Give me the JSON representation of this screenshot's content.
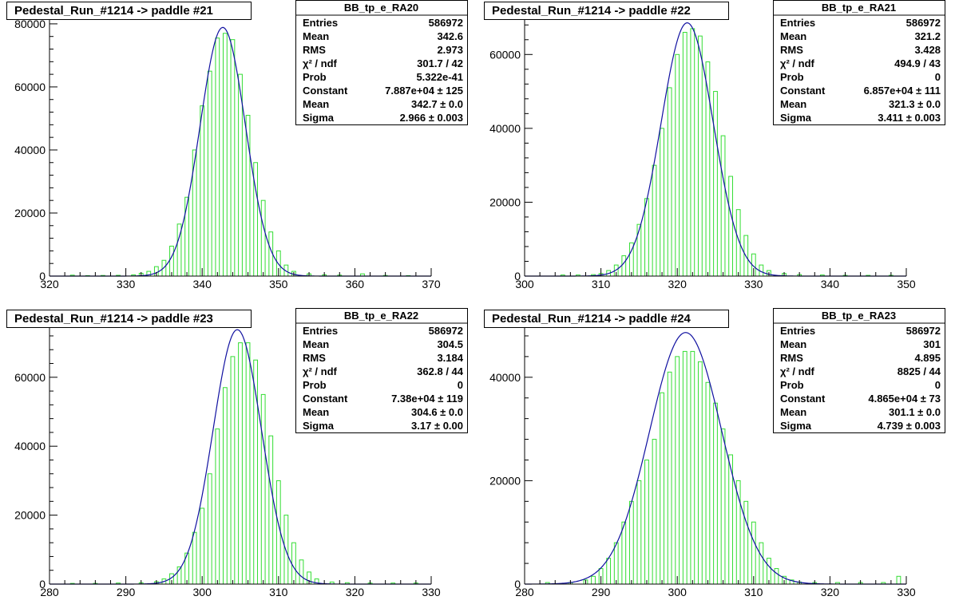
{
  "chart_data": [
    {
      "type": "bar",
      "title": "Pedestal_Run_#1214 -> paddle #21",
      "xlim": [
        320,
        370
      ],
      "ylim": [
        0,
        82000
      ],
      "xticks": [
        320,
        330,
        340,
        350,
        360,
        370
      ],
      "yticks": [
        0,
        20000,
        40000,
        60000,
        80000
      ],
      "x": [
        323,
        325,
        327,
        329,
        331,
        332,
        333,
        334,
        335,
        336,
        337,
        338,
        339,
        340,
        341,
        342,
        343,
        344,
        345,
        346,
        347,
        348,
        349,
        350,
        351,
        352,
        354,
        356,
        358,
        361,
        364,
        367
      ],
      "values": [
        300,
        150,
        200,
        250,
        400,
        900,
        1500,
        3000,
        5000,
        9500,
        16500,
        25000,
        40000,
        54000,
        65000,
        75500,
        77000,
        75000,
        64000,
        51000,
        36000,
        24000,
        14000,
        8000,
        3500,
        1500,
        700,
        400,
        300,
        700,
        200,
        150
      ],
      "fit": {
        "constant": 78870,
        "mean": 342.7,
        "sigma": 2.966
      },
      "stats": {
        "name": "BB_tp_e_RA20",
        "rows": [
          {
            "label": "Entries",
            "value": "586972"
          },
          {
            "label": "Mean",
            "value": "342.6"
          },
          {
            "label": "RMS",
            "value": "2.973"
          },
          {
            "label": "χ² / ndf",
            "value": "301.7 / 42"
          },
          {
            "label": "Prob",
            "value": "5.322e-41"
          },
          {
            "label": "Constant",
            "value": "7.887e+04 ± 125"
          },
          {
            "label": "Mean",
            "value": "342.7 ± 0.0"
          },
          {
            "label": "Sigma",
            "value": "2.966 ± 0.003"
          }
        ]
      }
    },
    {
      "type": "bar",
      "title": "Pedestal_Run_#1214 -> paddle #22",
      "xlim": [
        300,
        350
      ],
      "ylim": [
        0,
        70000
      ],
      "xticks": [
        300,
        310,
        320,
        330,
        340,
        350
      ],
      "yticks": [
        0,
        20000,
        40000,
        60000
      ],
      "x": [
        305,
        307,
        309,
        310,
        311,
        312,
        313,
        314,
        315,
        316,
        317,
        318,
        319,
        320,
        321,
        322,
        323,
        324,
        325,
        326,
        327,
        328,
        329,
        330,
        331,
        332,
        334,
        336,
        339,
        342,
        345,
        348
      ],
      "values": [
        300,
        300,
        400,
        700,
        1500,
        3000,
        5500,
        9000,
        14000,
        21000,
        30000,
        40000,
        51000,
        60000,
        66000,
        67000,
        65000,
        58000,
        50000,
        38000,
        27000,
        18000,
        11000,
        6000,
        3000,
        1500,
        700,
        400,
        300,
        200,
        200,
        200
      ],
      "fit": {
        "constant": 68570,
        "mean": 321.3,
        "sigma": 3.411
      },
      "stats": {
        "name": "BB_tp_e_RA21",
        "rows": [
          {
            "label": "Entries",
            "value": "586972"
          },
          {
            "label": "Mean",
            "value": "321.2"
          },
          {
            "label": "RMS",
            "value": "3.428"
          },
          {
            "label": "χ² / ndf",
            "value": "494.9 / 43"
          },
          {
            "label": "Prob",
            "value": "0"
          },
          {
            "label": "Constant",
            "value": "6.857e+04 ± 111"
          },
          {
            "label": "Mean",
            "value": "321.3 ± 0.0"
          },
          {
            "label": "Sigma",
            "value": "3.411 ± 0.003"
          }
        ]
      }
    },
    {
      "type": "bar",
      "title": "Pedestal_Run_#1214 -> paddle #23",
      "xlim": [
        280,
        330
      ],
      "ylim": [
        0,
        75000
      ],
      "xticks": [
        280,
        290,
        300,
        310,
        320,
        330
      ],
      "yticks": [
        0,
        20000,
        40000,
        60000
      ],
      "x": [
        283,
        286,
        289,
        292,
        294,
        295,
        296,
        297,
        298,
        299,
        300,
        301,
        302,
        303,
        304,
        305,
        306,
        307,
        308,
        309,
        310,
        311,
        312,
        313,
        314,
        315,
        317,
        319,
        322,
        325,
        328
      ],
      "values": [
        200,
        200,
        300,
        400,
        700,
        1500,
        3000,
        5000,
        9000,
        15000,
        22000,
        32000,
        45000,
        57000,
        66000,
        70000,
        70000,
        65000,
        55000,
        43000,
        30000,
        20000,
        12000,
        7000,
        3500,
        1500,
        600,
        400,
        300,
        300,
        300
      ],
      "fit": {
        "constant": 73800,
        "mean": 304.6,
        "sigma": 3.17
      },
      "stats": {
        "name": "BB_tp_e_RA22",
        "rows": [
          {
            "label": "Entries",
            "value": "586972"
          },
          {
            "label": "Mean",
            "value": "304.5"
          },
          {
            "label": "RMS",
            "value": "3.184"
          },
          {
            "label": "χ² / ndf",
            "value": "362.8 / 44"
          },
          {
            "label": "Prob",
            "value": "0"
          },
          {
            "label": "Constant",
            "value": "7.38e+04 ± 119"
          },
          {
            "label": "Mean",
            "value": "304.6 ± 0.0"
          },
          {
            "label": "Sigma",
            "value": "3.17 ± 0.00"
          }
        ]
      }
    },
    {
      "type": "bar",
      "title": "Pedestal_Run_#1214 -> paddle #24",
      "xlim": [
        280,
        330
      ],
      "ylim": [
        0,
        50000
      ],
      "xticks": [
        280,
        290,
        300,
        310,
        320,
        330
      ],
      "yticks": [
        0,
        20000,
        40000
      ],
      "x": [
        283,
        286,
        288,
        289,
        290,
        291,
        292,
        293,
        294,
        295,
        296,
        297,
        298,
        299,
        300,
        301,
        302,
        303,
        304,
        305,
        306,
        307,
        308,
        309,
        310,
        311,
        312,
        313,
        314,
        315,
        316,
        318,
        321,
        324,
        327,
        329
      ],
      "values": [
        300,
        300,
        800,
        1500,
        3000,
        5000,
        8000,
        12000,
        16000,
        20000,
        24000,
        28000,
        37000,
        41000,
        44000,
        45000,
        45000,
        43000,
        39000,
        35000,
        30000,
        25000,
        20000,
        16000,
        12000,
        8000,
        5000,
        3000,
        1500,
        800,
        400,
        300,
        300,
        300,
        300,
        1500
      ],
      "fit": {
        "constant": 48650,
        "mean": 301.1,
        "sigma": 4.739
      },
      "stats": {
        "name": "BB_tp_e_RA23",
        "rows": [
          {
            "label": "Entries",
            "value": "586972"
          },
          {
            "label": "Mean",
            "value": "301"
          },
          {
            "label": "RMS",
            "value": "4.895"
          },
          {
            "label": "χ² / ndf",
            "value": "8825 / 44"
          },
          {
            "label": "Prob",
            "value": "0"
          },
          {
            "label": "Constant",
            "value": "4.865e+04 ± 73"
          },
          {
            "label": "Mean",
            "value": "301.1 ± 0.0"
          },
          {
            "label": "Sigma",
            "value": "4.739 ± 0.003"
          }
        ]
      }
    }
  ],
  "colors": {
    "bar_stroke": "#33dd33",
    "fit_line": "#1010a0",
    "axis": "#000000",
    "background": "#ffffff"
  }
}
